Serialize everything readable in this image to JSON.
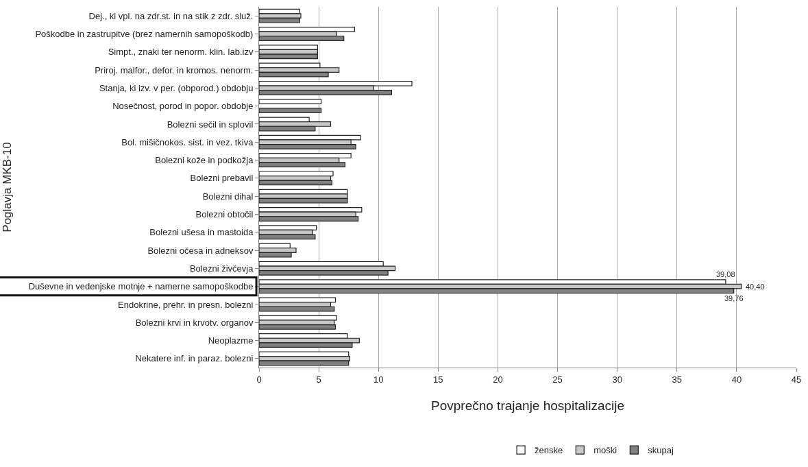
{
  "chart_data": {
    "type": "bar",
    "orientation": "horizontal",
    "xlabel": "Povprečno trajanje hospitalizacije",
    "ylabel": "Poglavja MKB-10",
    "categories": [
      "Dej., ki vpl. na zdr.st. in na stik z zdr. služ.",
      "Poškodbe in zastrupitve (brez namernih samopoškodb)",
      "Simpt., znaki ter nenorm. klin. lab.izv",
      "Priroj. malfor., defor. in kromos. nenorm.",
      "Stanja, ki izv. v per. (obporod.) obdobju",
      "Nosečnost, porod in popor. obdobje",
      "Bolezni sečil in splovil",
      "Bol. mišičnokos. sist. in vez. tkiva",
      "Bolezni kože in podkožja",
      "Bolezni prebavil",
      "Bolezni dihal",
      "Bolezni obtočil",
      "Bolezni ušesa in mastoida",
      "Bolezni očesa in adneksov",
      "Bolezni živčevja",
      "Duševne in vedenjske motnje + namerne samopoškodbe",
      "Endokrine, prehr. in presn. bolezni",
      "Bolezni krvi in krvotv. organov",
      "Neoplazme",
      "Nekatere inf. in paraz. bolezni"
    ],
    "series": [
      {
        "name": "ženske",
        "color": "#ffffff",
        "values": [
          3.4,
          8.0,
          4.9,
          5.1,
          12.8,
          5.2,
          4.2,
          8.5,
          7.7,
          6.2,
          7.4,
          8.6,
          4.8,
          2.6,
          10.4,
          39.08,
          6.4,
          6.5,
          7.4,
          7.5
        ],
        "value_labels": [
          null,
          null,
          null,
          null,
          null,
          null,
          null,
          null,
          null,
          null,
          null,
          null,
          null,
          null,
          null,
          "39,08",
          null,
          null,
          null,
          null
        ]
      },
      {
        "name": "moški",
        "color": "#c8c8c8",
        "values": [
          3.5,
          6.5,
          4.9,
          6.7,
          9.6,
          null,
          6.0,
          7.7,
          6.7,
          6.0,
          7.4,
          8.1,
          4.5,
          3.1,
          11.4,
          40.4,
          6.0,
          6.3,
          8.4,
          7.6
        ],
        "value_labels": [
          null,
          null,
          null,
          null,
          null,
          null,
          null,
          null,
          null,
          null,
          null,
          null,
          null,
          null,
          null,
          "40,40",
          null,
          null,
          null,
          null
        ]
      },
      {
        "name": "skupaj",
        "color": "#808080",
        "values": [
          3.4,
          7.1,
          4.9,
          5.8,
          11.1,
          5.2,
          4.7,
          8.1,
          7.2,
          6.1,
          7.4,
          8.3,
          4.7,
          2.7,
          10.8,
          39.76,
          6.3,
          6.4,
          7.8,
          7.5
        ],
        "value_labels": [
          null,
          null,
          null,
          null,
          null,
          null,
          null,
          null,
          null,
          null,
          null,
          null,
          null,
          null,
          null,
          "39,76",
          null,
          null,
          null,
          null
        ]
      }
    ],
    "xlim": [
      0,
      45
    ],
    "xticks": [
      0,
      5,
      10,
      15,
      20,
      25,
      30,
      35,
      40,
      45
    ],
    "grid": "x",
    "legend": "bottom"
  }
}
